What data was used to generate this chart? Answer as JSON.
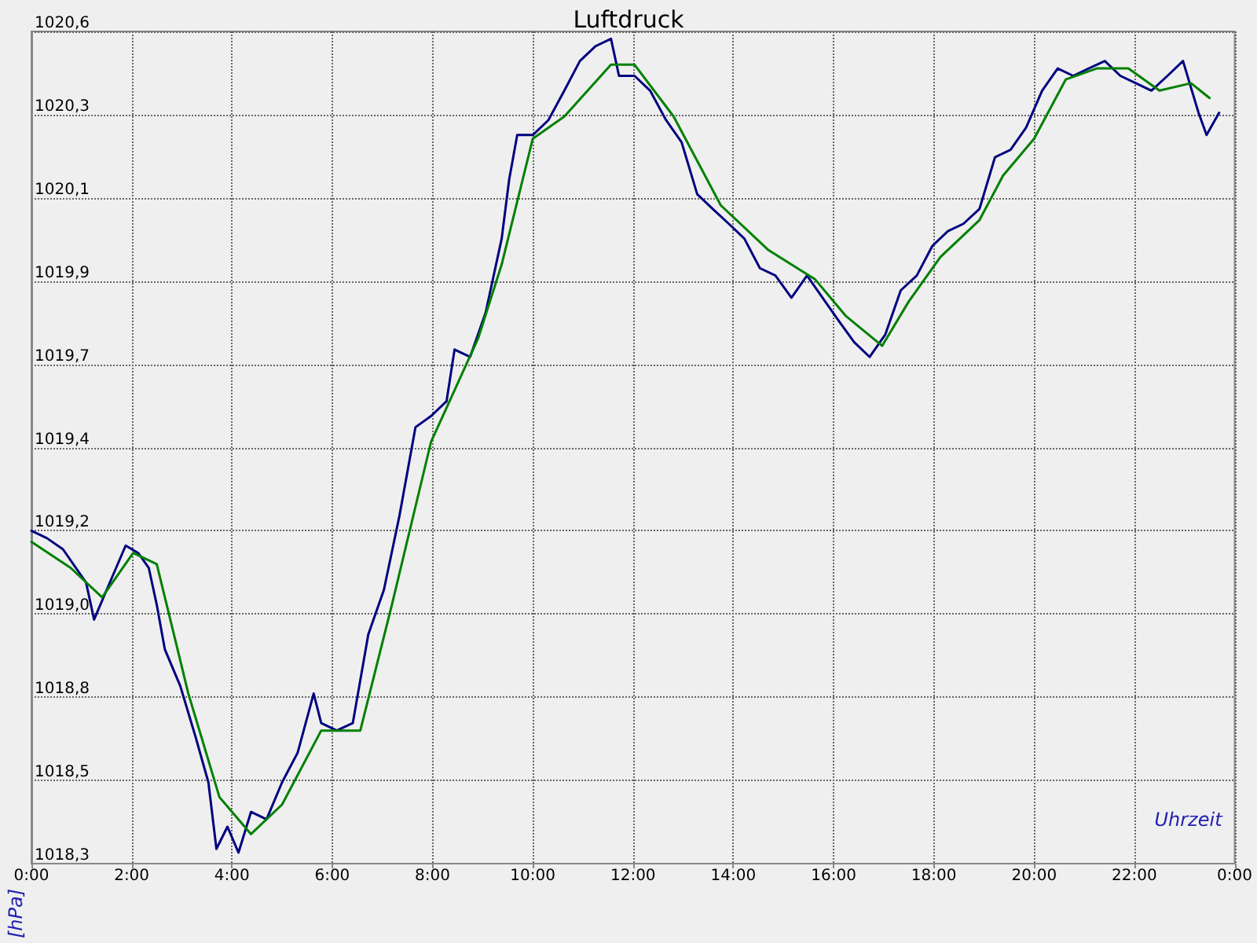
{
  "chart_data": {
    "type": "line",
    "title": "Luftdruck",
    "xlabel": "Uhrzeit",
    "ylabel": "[hPa]",
    "xlim": [
      0,
      24
    ],
    "xticks": [
      {
        "value": 0,
        "label": "0:00"
      },
      {
        "value": 2,
        "label": "2:00"
      },
      {
        "value": 4,
        "label": "4:00"
      },
      {
        "value": 6,
        "label": "6:00"
      },
      {
        "value": 8,
        "label": "8:00"
      },
      {
        "value": 10,
        "label": "10:00"
      },
      {
        "value": 12,
        "label": "12:00"
      },
      {
        "value": 14,
        "label": "14:00"
      },
      {
        "value": 16,
        "label": "16:00"
      },
      {
        "value": 18,
        "label": "18:00"
      },
      {
        "value": 20,
        "label": "20:00"
      },
      {
        "value": 22,
        "label": "22:00"
      },
      {
        "value": 24,
        "label": "0:00"
      }
    ],
    "ylim": [
      1018.3,
      1020.55
    ],
    "yticks": [
      {
        "value": 1018.3,
        "label": "1018,3"
      },
      {
        "value": 1018.525,
        "label": "1018,5"
      },
      {
        "value": 1018.75,
        "label": "1018,8"
      },
      {
        "value": 1018.975,
        "label": "1019,0"
      },
      {
        "value": 1019.2,
        "label": "1019,2"
      },
      {
        "value": 1019.425,
        "label": "1019,4"
      },
      {
        "value": 1019.65,
        "label": "1019,7"
      },
      {
        "value": 1019.875,
        "label": "1019,9"
      },
      {
        "value": 1020.1,
        "label": "1020,1"
      },
      {
        "value": 1020.325,
        "label": "1020,3"
      },
      {
        "value": 1020.55,
        "label": "1020,6"
      }
    ],
    "grid": true,
    "marker": "none",
    "line_style": "solid",
    "series": [
      {
        "color": "#000080",
        "x": [
          0,
          0.31,
          0.63,
          1.09,
          1.25,
          1.5,
          1.88,
          2.13,
          2.34,
          2.5,
          2.66,
          2.97,
          3.28,
          3.53,
          3.69,
          3.91,
          4.13,
          4.38,
          4.69,
          5,
          5.31,
          5.63,
          5.78,
          6.09,
          6.41,
          6.72,
          7.03,
          7.34,
          7.66,
          7.97,
          8.28,
          8.44,
          8.75,
          9.06,
          9.38,
          9.53,
          9.69,
          10,
          10.31,
          10.63,
          10.94,
          11.25,
          11.56,
          11.72,
          12.03,
          12.34,
          12.66,
          12.97,
          13.28,
          13.59,
          13.91,
          14.22,
          14.53,
          14.84,
          15.16,
          15.47,
          15.78,
          16.09,
          16.41,
          16.72,
          17.03,
          17.34,
          17.66,
          17.97,
          18.28,
          18.59,
          18.91,
          19.22,
          19.53,
          19.84,
          20.16,
          20.47,
          20.78,
          21.09,
          21.41,
          21.72,
          22.03,
          22.34,
          22.66,
          22.97,
          23.28,
          23.44,
          23.69
        ],
        "values": [
          1019.2,
          1019.18,
          1019.15,
          1019.06,
          1018.96,
          1019.04,
          1019.16,
          1019.14,
          1019.1,
          1019.0,
          1018.88,
          1018.78,
          1018.64,
          1018.52,
          1018.34,
          1018.4,
          1018.33,
          1018.44,
          1018.42,
          1018.52,
          1018.6,
          1018.76,
          1018.68,
          1018.66,
          1018.68,
          1018.92,
          1019.04,
          1019.24,
          1019.48,
          1019.51,
          1019.55,
          1019.69,
          1019.67,
          1019.79,
          1019.99,
          1020.15,
          1020.27,
          1020.27,
          1020.31,
          1020.39,
          1020.47,
          1020.51,
          1020.53,
          1020.43,
          1020.43,
          1020.39,
          1020.31,
          1020.25,
          1020.11,
          1020.07,
          1020.03,
          1019.99,
          1019.91,
          1019.89,
          1019.83,
          1019.89,
          1019.83,
          1019.77,
          1019.71,
          1019.67,
          1019.73,
          1019.85,
          1019.89,
          1019.97,
          1020.01,
          1020.03,
          1020.07,
          1020.21,
          1020.23,
          1020.29,
          1020.39,
          1020.45,
          1020.43,
          1020.45,
          1020.47,
          1020.43,
          1020.41,
          1020.39,
          1020.43,
          1020.47,
          1020.33,
          1020.27,
          1020.33
        ]
      },
      {
        "color": "#008000",
        "x": [
          0,
          0.78,
          1.41,
          2.03,
          2.5,
          3.13,
          3.75,
          4.38,
          5,
          5.78,
          6.56,
          7.19,
          7.97,
          8.91,
          9.38,
          10,
          10.63,
          11.56,
          12.03,
          12.81,
          13.75,
          14.69,
          15.63,
          16.25,
          16.97,
          17.5,
          18.13,
          18.91,
          19.38,
          20,
          20.63,
          21.25,
          21.88,
          22.5,
          23.13,
          23.5
        ],
        "values": [
          1019.17,
          1019.1,
          1019.02,
          1019.14,
          1019.11,
          1018.76,
          1018.48,
          1018.38,
          1018.46,
          1018.66,
          1018.66,
          1019.0,
          1019.44,
          1019.72,
          1019.92,
          1020.26,
          1020.32,
          1020.46,
          1020.46,
          1020.32,
          1020.08,
          1019.96,
          1019.88,
          1019.78,
          1019.7,
          1019.82,
          1019.94,
          1020.04,
          1020.16,
          1020.26,
          1020.42,
          1020.45,
          1020.45,
          1020.39,
          1020.41,
          1020.37
        ]
      }
    ]
  }
}
